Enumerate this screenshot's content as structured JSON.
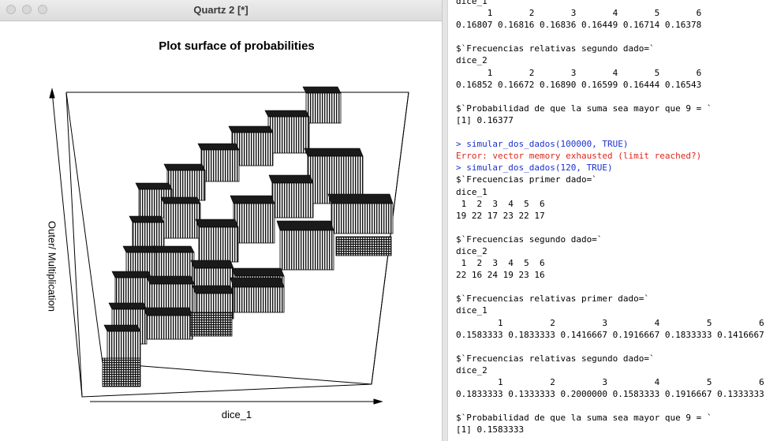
{
  "quartz_window": {
    "title": "Quartz 2 [*]",
    "plot": {
      "title": "Plot surface of probabilities",
      "xlabel": "dice_1",
      "ylabel": "Outer/ Multiplication"
    }
  },
  "console": {
    "lines": [
      {
        "kind": "out",
        "text": "dice_1"
      },
      {
        "kind": "out",
        "text": "      1       2       3       4       5       6"
      },
      {
        "kind": "out",
        "text": "0.16807 0.16816 0.16836 0.16449 0.16714 0.16378"
      },
      {
        "kind": "out",
        "text": ""
      },
      {
        "kind": "out",
        "text": "$`Frecuencias relativas segundo dado=`"
      },
      {
        "kind": "out",
        "text": "dice_2"
      },
      {
        "kind": "out",
        "text": "      1       2       3       4       5       6"
      },
      {
        "kind": "out",
        "text": "0.16852 0.16672 0.16890 0.16599 0.16444 0.16543"
      },
      {
        "kind": "out",
        "text": ""
      },
      {
        "kind": "out",
        "text": "$`Probabilidad de que la suma sea mayor que 9 = `"
      },
      {
        "kind": "out",
        "text": "[1] 0.16377"
      },
      {
        "kind": "out",
        "text": ""
      },
      {
        "kind": "cmd",
        "text": "> simular_dos_dados(100000, TRUE)"
      },
      {
        "kind": "err",
        "text": "Error: vector memory exhausted (limit reached?)"
      },
      {
        "kind": "cmd",
        "text": "> simular_dos_dados(120, TRUE)"
      },
      {
        "kind": "out",
        "text": "$`Frecuencias primer dado=`"
      },
      {
        "kind": "out",
        "text": "dice_1"
      },
      {
        "kind": "out",
        "text": " 1  2  3  4  5  6"
      },
      {
        "kind": "out",
        "text": "19 22 17 23 22 17"
      },
      {
        "kind": "out",
        "text": ""
      },
      {
        "kind": "out",
        "text": "$`Frecuencias segundo dado=`"
      },
      {
        "kind": "out",
        "text": "dice_2"
      },
      {
        "kind": "out",
        "text": " 1  2  3  4  5  6"
      },
      {
        "kind": "out",
        "text": "22 16 24 19 23 16"
      },
      {
        "kind": "out",
        "text": ""
      },
      {
        "kind": "out",
        "text": "$`Frecuencias relativas primer dado=`"
      },
      {
        "kind": "out",
        "text": "dice_1"
      },
      {
        "kind": "out",
        "text": "        1         2         3         4         5         6"
      },
      {
        "kind": "out",
        "text": "0.1583333 0.1833333 0.1416667 0.1916667 0.1833333 0.1416667"
      },
      {
        "kind": "out",
        "text": ""
      },
      {
        "kind": "out",
        "text": "$`Frecuencias relativas segundo dado=`"
      },
      {
        "kind": "out",
        "text": "dice_2"
      },
      {
        "kind": "out",
        "text": "        1         2         3         4         5         6"
      },
      {
        "kind": "out",
        "text": "0.1833333 0.1333333 0.2000000 0.1583333 0.1916667 0.1333333"
      },
      {
        "kind": "out",
        "text": ""
      },
      {
        "kind": "out",
        "text": "$`Probabilidad de que la suma sea mayor que 9 = `"
      },
      {
        "kind": "out",
        "text": "[1] 0.1583333"
      }
    ]
  },
  "colors": {
    "command": "#1b2fcf",
    "error": "#e0241c"
  }
}
